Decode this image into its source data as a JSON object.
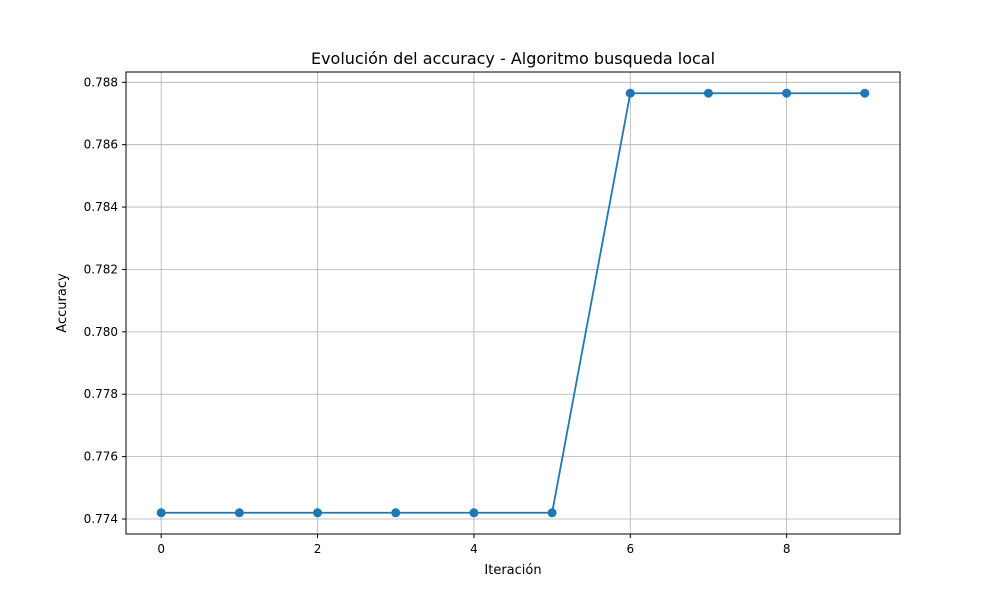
{
  "chart_data": {
    "type": "line",
    "title": "Evolución del accuracy - Algoritmo busqueda local",
    "xlabel": "Iteración",
    "ylabel": "Accuracy",
    "x": [
      0,
      1,
      2,
      3,
      4,
      5,
      6,
      7,
      8,
      9
    ],
    "series": [
      {
        "values": [
          0.7742,
          0.7742,
          0.7742,
          0.7742,
          0.7742,
          0.7742,
          0.78765,
          0.78765,
          0.78765,
          0.78765
        ],
        "color": "#1f77b4",
        "marker": "circle"
      }
    ],
    "xlim": [
      -0.45,
      9.45
    ],
    "ylim": [
      0.77352,
      0.78833
    ],
    "xticks": [
      0,
      2,
      4,
      6,
      8
    ],
    "xtick_labels": [
      "0",
      "2",
      "4",
      "6",
      "8"
    ],
    "yticks": [
      0.774,
      0.776,
      0.778,
      0.78,
      0.782,
      0.784,
      0.786,
      0.788
    ],
    "ytick_labels": [
      "0.774",
      "0.776",
      "0.778",
      "0.780",
      "0.782",
      "0.784",
      "0.786",
      "0.788"
    ],
    "grid": true,
    "legend": false
  }
}
